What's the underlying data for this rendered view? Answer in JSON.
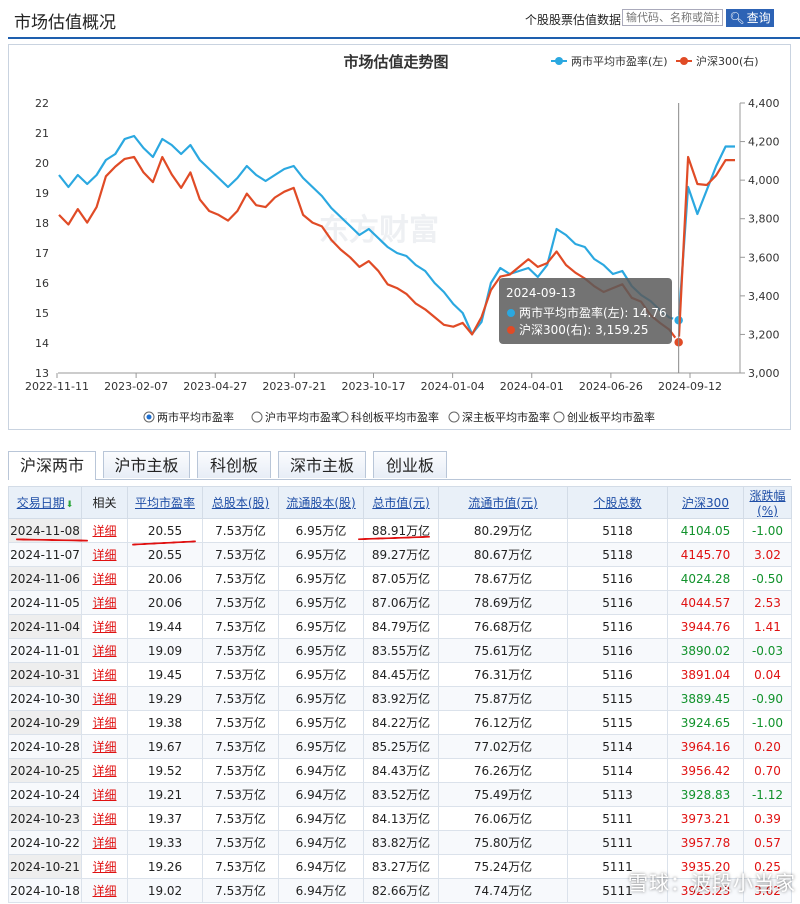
{
  "header": {
    "title": "市场估值概况",
    "search_label": "个股股票估值数据:",
    "search_placeholder": "输代码、名称或简拼",
    "search_button": "查询"
  },
  "chart_data": {
    "type": "line",
    "title": "市场估值走势图",
    "legend": [
      "两市平均市盈率(左)",
      "沪深300(右)"
    ],
    "legend_placement": "top-right",
    "x_ticks": [
      "2022-11-11",
      "2023-02-07",
      "2023-04-27",
      "2023-07-21",
      "2023-10-17",
      "2024-01-04",
      "2024-04-01",
      "2024-06-26",
      "2024-09-12"
    ],
    "y_left_ticks": [
      "13",
      "14",
      "15",
      "16",
      "17",
      "18",
      "19",
      "20",
      "21",
      "22"
    ],
    "y_right_ticks": [
      "3,000",
      "3,200",
      "3,400",
      "3,600",
      "3,800",
      "4,000",
      "4,200",
      "4,400"
    ],
    "ylim_left": [
      13,
      22
    ],
    "ylim_right": [
      3000,
      4400
    ],
    "grid": false,
    "series": [
      {
        "name": "两市平均市盈率(左)",
        "color": "#2ba8e0",
        "axis": "left",
        "values": [
          19.6,
          19.2,
          19.6,
          19.3,
          19.6,
          20.1,
          20.3,
          20.8,
          20.9,
          20.5,
          20.2,
          20.8,
          20.6,
          20.3,
          20.6,
          20.1,
          19.8,
          19.5,
          19.2,
          19.5,
          19.9,
          19.6,
          19.4,
          19.6,
          19.8,
          19.9,
          19.5,
          19.2,
          18.9,
          18.5,
          18.2,
          17.9,
          17.6,
          17.8,
          17.5,
          17.2,
          17.0,
          16.9,
          16.6,
          16.4,
          16.0,
          15.7,
          15.3,
          15.0,
          14.3,
          14.7,
          16.0,
          16.5,
          16.3,
          16.4,
          16.5,
          16.2,
          16.6,
          17.8,
          17.6,
          17.3,
          17.2,
          16.8,
          16.6,
          16.3,
          16.4,
          15.9,
          15.6,
          15.4,
          15.1,
          14.85,
          14.76,
          19.2,
          18.3,
          19.1,
          19.9,
          20.55,
          20.55
        ]
      },
      {
        "name": "沪深300(右)",
        "color": "#e04b26",
        "axis": "right",
        "values": [
          3820,
          3770,
          3850,
          3780,
          3860,
          4020,
          4070,
          4110,
          4120,
          4040,
          3990,
          4120,
          4030,
          3960,
          4040,
          3900,
          3840,
          3820,
          3790,
          3840,
          3930,
          3870,
          3860,
          3910,
          3940,
          3960,
          3820,
          3780,
          3760,
          3690,
          3640,
          3600,
          3550,
          3580,
          3530,
          3460,
          3440,
          3410,
          3360,
          3330,
          3290,
          3250,
          3240,
          3260,
          3200,
          3290,
          3430,
          3500,
          3510,
          3550,
          3590,
          3550,
          3570,
          3630,
          3560,
          3520,
          3490,
          3450,
          3420,
          3440,
          3460,
          3390,
          3370,
          3300,
          3260,
          3225,
          3159.25,
          4120,
          3980,
          3975,
          4025,
          4104.05,
          4104.05
        ]
      }
    ],
    "tooltip": {
      "date": "2024-09-13",
      "line1": "两市平均市盈率(左): 14.76",
      "line2": "沪深300(右): 3,159.25"
    },
    "watermark": "东方财富",
    "selectors": [
      {
        "label": "两市平均市盈率",
        "selected": true
      },
      {
        "label": "沪市平均市盈率",
        "selected": false
      },
      {
        "label": "科创板平均市盈率",
        "selected": false
      },
      {
        "label": "深主板平均市盈率",
        "selected": false
      },
      {
        "label": "创业板平均市盈率",
        "selected": false
      }
    ]
  },
  "tabs": [
    "沪深两市",
    "沪市主板",
    "科创板",
    "深市主板",
    "创业板"
  ],
  "table": {
    "headers": [
      "交易日期",
      "相关",
      "平均市盈率",
      "总股本(股)",
      "流通股本(股)",
      "总市值(元)",
      "流通市值(元)",
      "个股总数",
      "沪深300",
      "涨跌幅(%)"
    ],
    "detail_label": "详细",
    "rows": [
      {
        "date": "2024-11-08",
        "pe": "20.55",
        "total_shares": "7.53万亿",
        "float_shares": "6.95万亿",
        "total_mv": "88.91万亿",
        "float_mv": "80.29万亿",
        "count": "5118",
        "hs300": "4104.05",
        "chg": "-1.00"
      },
      {
        "date": "2024-11-07",
        "pe": "20.55",
        "total_shares": "7.53万亿",
        "float_shares": "6.95万亿",
        "total_mv": "89.27万亿",
        "float_mv": "80.67万亿",
        "count": "5118",
        "hs300": "4145.70",
        "chg": "3.02"
      },
      {
        "date": "2024-11-06",
        "pe": "20.06",
        "total_shares": "7.53万亿",
        "float_shares": "6.95万亿",
        "total_mv": "87.05万亿",
        "float_mv": "78.67万亿",
        "count": "5116",
        "hs300": "4024.28",
        "chg": "-0.50"
      },
      {
        "date": "2024-11-05",
        "pe": "20.06",
        "total_shares": "7.53万亿",
        "float_shares": "6.95万亿",
        "total_mv": "87.06万亿",
        "float_mv": "78.69万亿",
        "count": "5116",
        "hs300": "4044.57",
        "chg": "2.53"
      },
      {
        "date": "2024-11-04",
        "pe": "19.44",
        "total_shares": "7.53万亿",
        "float_shares": "6.95万亿",
        "total_mv": "84.79万亿",
        "float_mv": "76.68万亿",
        "count": "5116",
        "hs300": "3944.76",
        "chg": "1.41"
      },
      {
        "date": "2024-11-01",
        "pe": "19.09",
        "total_shares": "7.53万亿",
        "float_shares": "6.95万亿",
        "total_mv": "83.55万亿",
        "float_mv": "75.61万亿",
        "count": "5116",
        "hs300": "3890.02",
        "chg": "-0.03"
      },
      {
        "date": "2024-10-31",
        "pe": "19.45",
        "total_shares": "7.53万亿",
        "float_shares": "6.95万亿",
        "total_mv": "84.45万亿",
        "float_mv": "76.31万亿",
        "count": "5116",
        "hs300": "3891.04",
        "chg": "0.04"
      },
      {
        "date": "2024-10-30",
        "pe": "19.29",
        "total_shares": "7.53万亿",
        "float_shares": "6.95万亿",
        "total_mv": "83.92万亿",
        "float_mv": "75.87万亿",
        "count": "5115",
        "hs300": "3889.45",
        "chg": "-0.90"
      },
      {
        "date": "2024-10-29",
        "pe": "19.38",
        "total_shares": "7.53万亿",
        "float_shares": "6.95万亿",
        "total_mv": "84.22万亿",
        "float_mv": "76.12万亿",
        "count": "5115",
        "hs300": "3924.65",
        "chg": "-1.00"
      },
      {
        "date": "2024-10-28",
        "pe": "19.67",
        "total_shares": "7.53万亿",
        "float_shares": "6.95万亿",
        "total_mv": "85.25万亿",
        "float_mv": "77.02万亿",
        "count": "5114",
        "hs300": "3964.16",
        "chg": "0.20"
      },
      {
        "date": "2024-10-25",
        "pe": "19.52",
        "total_shares": "7.53万亿",
        "float_shares": "6.94万亿",
        "total_mv": "84.43万亿",
        "float_mv": "76.26万亿",
        "count": "5114",
        "hs300": "3956.42",
        "chg": "0.70"
      },
      {
        "date": "2024-10-24",
        "pe": "19.21",
        "total_shares": "7.53万亿",
        "float_shares": "6.94万亿",
        "total_mv": "83.52万亿",
        "float_mv": "75.49万亿",
        "count": "5113",
        "hs300": "3928.83",
        "chg": "-1.12"
      },
      {
        "date": "2024-10-23",
        "pe": "19.37",
        "total_shares": "7.53万亿",
        "float_shares": "6.94万亿",
        "total_mv": "84.13万亿",
        "float_mv": "76.06万亿",
        "count": "5111",
        "hs300": "3973.21",
        "chg": "0.39"
      },
      {
        "date": "2024-10-22",
        "pe": "19.33",
        "total_shares": "7.53万亿",
        "float_shares": "6.94万亿",
        "total_mv": "83.82万亿",
        "float_mv": "75.80万亿",
        "count": "5111",
        "hs300": "3957.78",
        "chg": "0.57"
      },
      {
        "date": "2024-10-21",
        "pe": "19.26",
        "total_shares": "7.53万亿",
        "float_shares": "6.94万亿",
        "total_mv": "83.27万亿",
        "float_mv": "75.24万亿",
        "count": "5111",
        "hs300": "3935.20",
        "chg": "0.25"
      },
      {
        "date": "2024-10-18",
        "pe": "19.02",
        "total_shares": "7.53万亿",
        "float_shares": "6.94万亿",
        "total_mv": "82.66万亿",
        "float_mv": "74.74万亿",
        "count": "5111",
        "hs300": "3925.23",
        "chg": "3.62"
      }
    ]
  },
  "watermark_text": "雪球：波段小当家"
}
